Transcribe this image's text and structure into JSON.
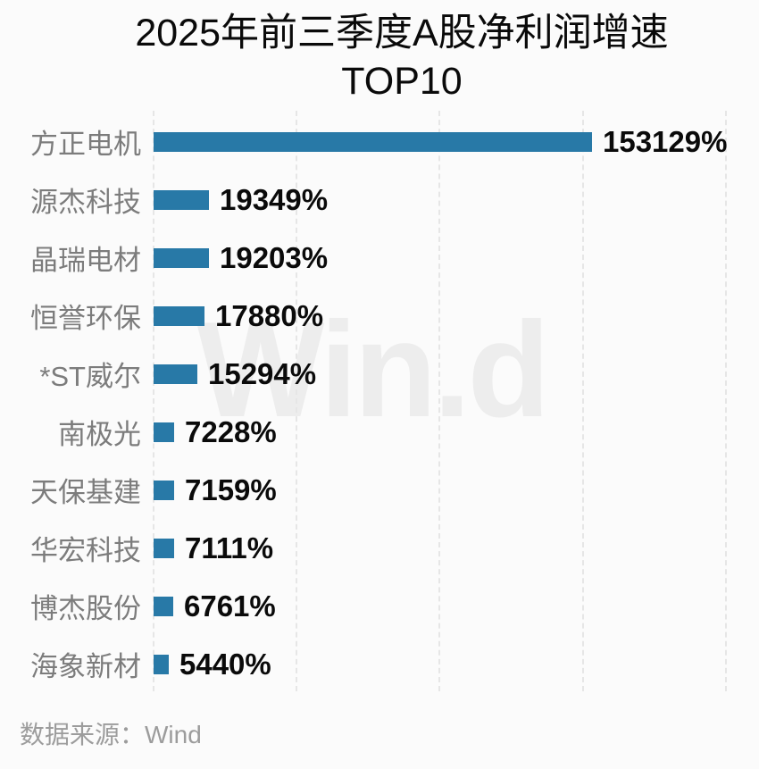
{
  "chart_data": {
    "type": "bar",
    "orientation": "horizontal",
    "title": "2025年前三季度A股净利润增速TOP10",
    "title_lines": [
      "2025年前三季度A股净利润增速",
      "TOP10"
    ],
    "categories": [
      "方正电机",
      "源杰科技",
      "晶瑞电材",
      "恒誉环保",
      "*ST威尔",
      "南极光",
      "天保基建",
      "华宏科技",
      "博杰股份",
      "海象新材"
    ],
    "values": [
      153129,
      19349,
      19203,
      17880,
      15294,
      7228,
      7159,
      7111,
      6761,
      5440
    ],
    "value_labels": [
      "153129%",
      "19349%",
      "19203%",
      "17880%",
      "15294%",
      "7228%",
      "7159%",
      "7111%",
      "6761%",
      "5440%"
    ],
    "unit": "%",
    "xlim": [
      0,
      200000
    ],
    "gridline_interval": 50000,
    "grid": "vertical dashed",
    "legend": "none",
    "bar_color": "#2879a7",
    "background_color": "#fbfbfb",
    "label_color": "#7c7c7c",
    "value_color": "#0a0a0a"
  },
  "watermark": "Win.d",
  "footer": {
    "source": "数据来源：Wind"
  }
}
